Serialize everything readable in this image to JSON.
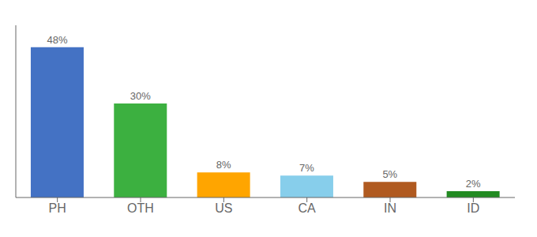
{
  "chart_data": {
    "type": "bar",
    "categories": [
      "PH",
      "OTH",
      "US",
      "CA",
      "IN",
      "ID"
    ],
    "values": [
      48,
      30,
      8,
      7,
      5,
      2
    ],
    "value_labels": [
      "48%",
      "30%",
      "8%",
      "7%",
      "5%",
      "2%"
    ],
    "data_labels": true,
    "colors": [
      "#4472C4",
      "#3CB040",
      "#FFA500",
      "#87CEEB",
      "#B05A20",
      "#228B22"
    ],
    "ylim": [
      0,
      55
    ],
    "grid": false,
    "tick_labels": "x"
  }
}
